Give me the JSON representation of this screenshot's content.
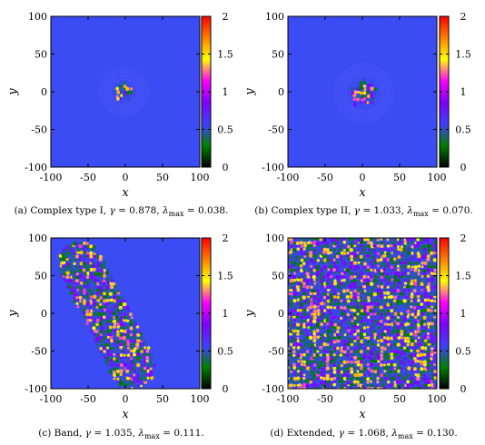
{
  "chart_data": [
    {
      "type": "heatmap",
      "caption": {
        "label": "(a) Complex type I, ",
        "gamma": "0.878",
        "lambda": "0.038"
      },
      "xlabel": "x",
      "ylabel": "y",
      "xlim": [
        -100,
        100
      ],
      "ylim": [
        -100,
        100
      ],
      "xticks": [
        "-100",
        "-50",
        "0",
        "50",
        "100"
      ],
      "yticks": [
        "100",
        "50",
        "0",
        "-50",
        "-100"
      ],
      "colorbar": {
        "range": [
          0,
          2
        ],
        "ticks": [
          "2",
          "1.5",
          "1",
          "0.5",
          "0"
        ]
      },
      "pattern": {
        "shape": "blob",
        "center": [
          -2,
          0
        ],
        "radius": 13,
        "background": 0.8
      }
    },
    {
      "type": "heatmap",
      "caption": {
        "label": "(b) Complex type II, ",
        "gamma": "1.033",
        "lambda": "0.070"
      },
      "xlabel": "x",
      "ylabel": "y",
      "xlim": [
        -100,
        100
      ],
      "ylim": [
        -100,
        100
      ],
      "xticks": [
        "-100",
        "-50",
        "0",
        "50",
        "100"
      ],
      "yticks": [
        "100",
        "50",
        "0",
        "-50",
        "-100"
      ],
      "colorbar": {
        "range": [
          0,
          2
        ],
        "ticks": [
          "2",
          "1.5",
          "1",
          "0.5",
          "0"
        ]
      },
      "pattern": {
        "shape": "blob",
        "center": [
          2,
          -2
        ],
        "radius": 20,
        "background": 0.82
      }
    },
    {
      "type": "heatmap",
      "caption": {
        "label": "(c) Band, ",
        "gamma": "1.035",
        "lambda": "0.111"
      },
      "xlabel": "x",
      "ylabel": "y",
      "xlim": [
        -100,
        100
      ],
      "ylim": [
        -100,
        100
      ],
      "xticks": [
        "-100",
        "-50",
        "0",
        "50",
        "100"
      ],
      "yticks": [
        "100",
        "50",
        "0",
        "-50",
        "-100"
      ],
      "colorbar": {
        "range": [
          0,
          2
        ],
        "ticks": [
          "2",
          "1.5",
          "1",
          "0.5",
          "0"
        ]
      },
      "pattern": {
        "shape": "band",
        "from": [
          -60,
          65
        ],
        "to": [
          10,
          -70
        ],
        "halfwidth": 30,
        "background": 0.8
      }
    },
    {
      "type": "heatmap",
      "caption": {
        "label": "(d) Extended, ",
        "gamma": "1.068",
        "lambda": "0.130"
      },
      "xlabel": "x",
      "ylabel": "y",
      "xlim": [
        -100,
        100
      ],
      "ylim": [
        -100,
        100
      ],
      "xticks": [
        "-100",
        "-50",
        "0",
        "50",
        "100"
      ],
      "yticks": [
        "100",
        "50",
        "0",
        "-50",
        "-100"
      ],
      "colorbar": {
        "range": [
          0,
          2
        ],
        "ticks": [
          "2",
          "1.5",
          "1",
          "0.5",
          "0"
        ]
      },
      "pattern": {
        "shape": "extended",
        "background": 0.8
      }
    }
  ],
  "colors": {
    "colormap": [
      "#000000",
      "#008000",
      "#3f3fff",
      "#7f00ff",
      "#ff00ff",
      "#ffff00",
      "#ff8000",
      "#ff0000"
    ],
    "background_field": "#3c4cf4"
  }
}
